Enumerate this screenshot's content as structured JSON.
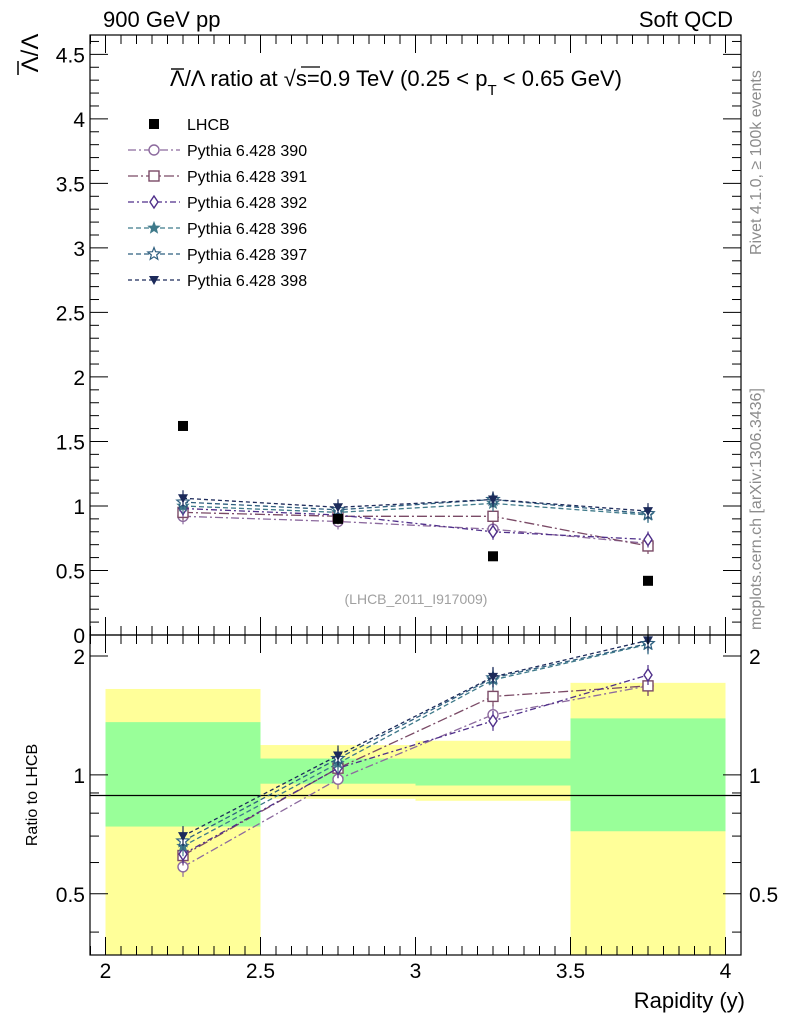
{
  "header": {
    "left": "900 GeV pp",
    "right": "Soft QCD"
  },
  "side_labels": {
    "rivet": "Rivet 4.1.0, ≥ 100k events",
    "mcplots": "mcplots.cern.ch [arXiv:1306.3436]"
  },
  "chart_data": {
    "type": "line",
    "title": "Λ̅/Λ ratio at √s=0.9 TeV (0.25 < pT < 0.65 GeV)",
    "title_parts": {
      "lead": "Λ/Λ ratio at ",
      "sqrt": "√",
      "mid": "s=0.9 TeV (0.25 < p",
      "sub": "T",
      "tail": " < 0.65 GeV)"
    },
    "ylabel": "Λ/Λ",
    "xlabel": "Rapidity (y)",
    "analysis_label": "(LHCB_2011_I917009)",
    "ratio_ylabel": "Ratio to LHCB",
    "xlim": [
      1.95,
      4.05
    ],
    "ylim": [
      0,
      4.65
    ],
    "ratio_ylim": [
      0.35,
      2.26
    ],
    "x_ticks": [
      "2",
      "2.5",
      "3",
      "3.5",
      "4"
    ],
    "y_ticks": [
      "0",
      "0.5",
      "1",
      "1.5",
      "2",
      "2.5",
      "3",
      "3.5",
      "4",
      "4.5"
    ],
    "ratio_ticks": [
      "0.5",
      "1",
      "2"
    ],
    "x": [
      2.25,
      2.75,
      3.25,
      3.75
    ],
    "bins": [
      [
        2.0,
        2.5
      ],
      [
        2.5,
        3.0
      ],
      [
        3.0,
        3.5
      ],
      [
        3.5,
        4.0
      ]
    ],
    "data": {
      "name": "LHCB",
      "values": [
        1.62,
        0.9,
        0.61,
        0.42
      ],
      "band_inner": [
        [
          0.74,
          1.36
        ],
        [
          0.95,
          1.1
        ],
        [
          0.94,
          1.1
        ],
        [
          0.72,
          1.39
        ]
      ],
      "band_outer": [
        [
          0.35,
          1.65
        ],
        [
          0.87,
          1.19
        ],
        [
          0.86,
          1.22
        ],
        [
          0.35,
          1.71
        ]
      ]
    },
    "series": [
      {
        "name": "Pythia 6.428 390",
        "color": "#8c6a9e",
        "marker": "circle-open",
        "dash": "8,3,2,3",
        "values": [
          0.92,
          0.88,
          0.82,
          0.71
        ],
        "ratio": [
          0.585,
          0.975,
          1.42,
          1.68
        ]
      },
      {
        "name": "Pythia 6.428 391",
        "color": "#7a4a66",
        "marker": "square-open",
        "dash": "10,3,2,3",
        "values": [
          0.95,
          0.92,
          0.92,
          0.69
        ],
        "ratio": [
          0.625,
          1.04,
          1.58,
          1.68
        ]
      },
      {
        "name": "Pythia 6.428 392",
        "color": "#4f2f8a",
        "marker": "diamond-open",
        "dash": "6,3,2,3",
        "values": [
          0.98,
          0.93,
          0.8,
          0.74
        ],
        "ratio": [
          0.63,
          1.04,
          1.37,
          1.79
        ]
      },
      {
        "name": "Pythia 6.428 396",
        "color": "#3f7a8a",
        "marker": "star-full",
        "dash": "5,3",
        "values": [
          1.0,
          0.95,
          1.02,
          0.93
        ],
        "ratio": [
          0.66,
          1.07,
          1.74,
          2.14
        ]
      },
      {
        "name": "Pythia 6.428 397",
        "color": "#2f5f7f",
        "marker": "star-open",
        "dash": "5,3",
        "values": [
          1.03,
          0.97,
          1.05,
          0.94
        ],
        "ratio": [
          0.68,
          1.1,
          1.76,
          2.15
        ]
      },
      {
        "name": "Pythia 6.428 398",
        "color": "#1c2a5a",
        "marker": "tri-down-full",
        "dash": "4,3",
        "values": [
          1.06,
          0.99,
          1.05,
          0.96
        ],
        "ratio": [
          0.7,
          1.12,
          1.77,
          2.19
        ]
      }
    ],
    "legend_position": "top-left"
  }
}
